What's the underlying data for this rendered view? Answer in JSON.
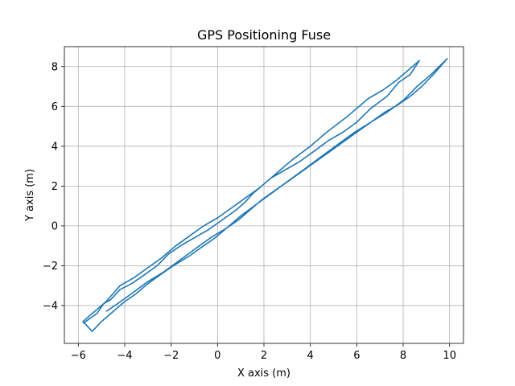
{
  "chart_data": {
    "type": "line",
    "title": "GPS Positioning Fuse",
    "xlabel": "X axis (m)",
    "ylabel": "Y axis (m)",
    "xlim": [
      -6.6,
      10.6
    ],
    "ylim": [
      -5.9,
      9.0
    ],
    "xticks": [
      -6,
      -4,
      -2,
      0,
      2,
      4,
      6,
      8,
      10
    ],
    "yticks": [
      -4,
      -2,
      0,
      2,
      4,
      6,
      8
    ],
    "grid": true,
    "line_color": "#1f77b4",
    "series": [
      {
        "values": [
          [
            -5.8,
            -4.9
          ],
          [
            -5.2,
            -4.4
          ],
          [
            -4.9,
            -3.9
          ],
          [
            -4.6,
            -3.7
          ],
          [
            -4.2,
            -3.2
          ],
          [
            -3.7,
            -2.9
          ],
          [
            -3.2,
            -2.5
          ],
          [
            -2.6,
            -2.0
          ],
          [
            -2.1,
            -1.4
          ],
          [
            -1.6,
            -1.0
          ],
          [
            -1.0,
            -0.6
          ],
          [
            -0.4,
            -0.2
          ],
          [
            0.2,
            0.3
          ],
          [
            0.8,
            0.8
          ],
          [
            1.2,
            1.2
          ],
          [
            1.5,
            1.6
          ],
          [
            1.9,
            2.0
          ],
          [
            2.3,
            2.4
          ],
          [
            2.6,
            2.6
          ],
          [
            3.5,
            3.2
          ],
          [
            4.1,
            3.7
          ],
          [
            4.8,
            4.3
          ],
          [
            5.4,
            4.7
          ],
          [
            6.0,
            5.2
          ],
          [
            6.6,
            5.9
          ],
          [
            7.3,
            6.5
          ],
          [
            7.8,
            7.2
          ],
          [
            8.3,
            7.6
          ],
          [
            8.7,
            8.3
          ],
          [
            7.7,
            7.3
          ],
          [
            7.1,
            6.8
          ],
          [
            6.5,
            6.4
          ],
          [
            5.6,
            5.5
          ],
          [
            4.7,
            4.7
          ],
          [
            4.0,
            4.0
          ],
          [
            3.2,
            3.3
          ],
          [
            2.5,
            2.6
          ],
          [
            1.8,
            1.9
          ],
          [
            1.2,
            1.4
          ],
          [
            0.6,
            0.9
          ],
          [
            0.0,
            0.4
          ],
          [
            -0.6,
            0.0
          ],
          [
            -1.2,
            -0.5
          ],
          [
            -1.8,
            -1.0
          ],
          [
            -2.4,
            -1.6
          ],
          [
            -3.0,
            -2.1
          ],
          [
            -3.6,
            -2.6
          ],
          [
            -4.2,
            -3.0
          ],
          [
            -4.8,
            -3.8
          ],
          [
            -5.4,
            -4.4
          ],
          [
            -5.8,
            -4.8
          ],
          [
            -5.4,
            -5.3
          ],
          [
            -5.0,
            -4.8
          ],
          [
            -4.5,
            -4.3
          ],
          [
            -4.0,
            -3.8
          ],
          [
            -3.5,
            -3.4
          ],
          [
            -3.0,
            -2.9
          ],
          [
            -2.4,
            -2.4
          ],
          [
            -1.9,
            -2.0
          ],
          [
            -1.2,
            -1.5
          ],
          [
            -0.6,
            -1.0
          ],
          [
            -0.1,
            -0.6
          ],
          [
            0.4,
            -0.1
          ],
          [
            0.9,
            0.3
          ],
          [
            1.4,
            0.8
          ],
          [
            1.9,
            1.3
          ],
          [
            2.5,
            1.8
          ],
          [
            3.0,
            2.2
          ],
          [
            3.6,
            2.7
          ],
          [
            4.2,
            3.2
          ],
          [
            4.8,
            3.7
          ],
          [
            5.4,
            4.2
          ],
          [
            6.0,
            4.7
          ],
          [
            6.6,
            5.2
          ],
          [
            7.2,
            5.7
          ],
          [
            7.8,
            6.1
          ],
          [
            8.3,
            6.5
          ],
          [
            8.8,
            7.0
          ],
          [
            9.3,
            7.6
          ],
          [
            9.9,
            8.4
          ],
          [
            9.2,
            7.6
          ],
          [
            8.6,
            7.0
          ],
          [
            8.0,
            6.3
          ],
          [
            7.3,
            5.7
          ],
          [
            6.6,
            5.2
          ],
          [
            5.9,
            4.7
          ],
          [
            5.2,
            4.1
          ],
          [
            4.5,
            3.5
          ],
          [
            3.8,
            2.9
          ],
          [
            3.1,
            2.3
          ],
          [
            2.4,
            1.7
          ],
          [
            1.7,
            1.1
          ],
          [
            1.0,
            0.5
          ],
          [
            0.4,
            -0.1
          ],
          [
            -0.3,
            -0.6
          ],
          [
            -0.9,
            -1.1
          ],
          [
            -1.6,
            -1.7
          ],
          [
            -2.3,
            -2.3
          ],
          [
            -3.0,
            -2.8
          ],
          [
            -3.7,
            -3.4
          ],
          [
            -4.3,
            -3.9
          ],
          [
            -4.8,
            -4.3
          ]
        ]
      }
    ]
  }
}
